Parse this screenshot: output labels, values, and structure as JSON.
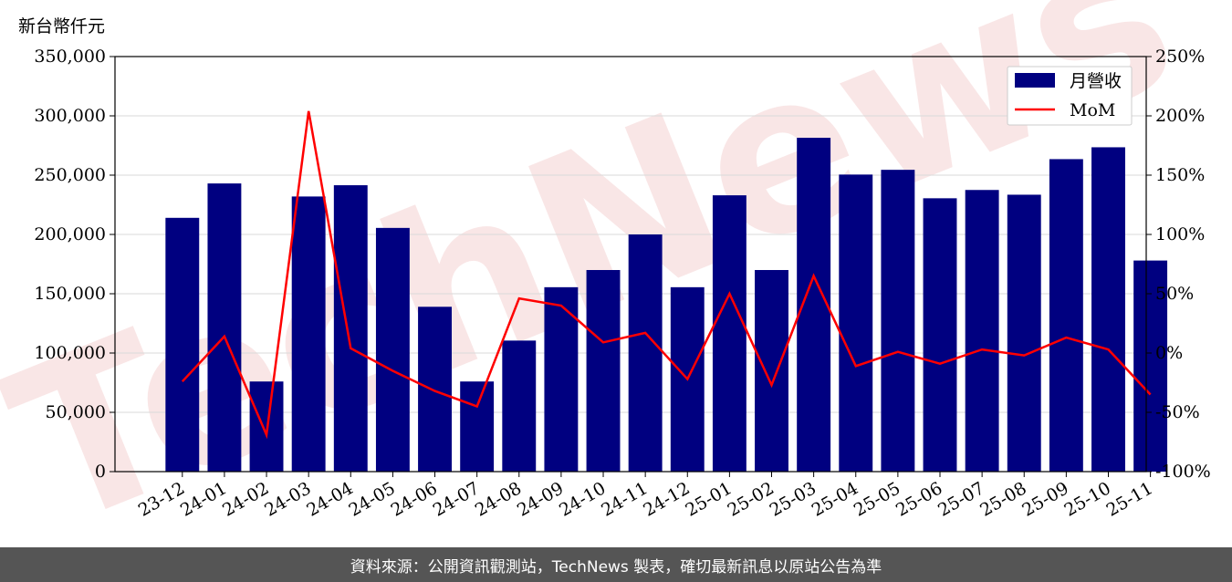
{
  "unit_label": "新台幣仟元",
  "footer": "資料來源：公開資訊觀測站，TechNews 製表，確切最新訊息以原站公告為準",
  "colors": {
    "bar": "#000080",
    "line": "#ff0000",
    "footer_bg": "#555555",
    "watermark": "#e8a0a0"
  },
  "watermark": "TechNews",
  "chart_data": {
    "type": "bar",
    "categories": [
      "23-12",
      "24-01",
      "24-02",
      "24-03",
      "24-04",
      "24-05",
      "24-06",
      "24-07",
      "24-08",
      "24-09",
      "24-10",
      "24-11",
      "24-12",
      "25-01",
      "25-02",
      "25-03",
      "25-04",
      "25-05",
      "25-06",
      "25-07",
      "25-08",
      "25-09",
      "25-10",
      "25-11"
    ],
    "series": [
      {
        "name": "月營收",
        "type": "bar",
        "axis": "left",
        "values": [
          214000,
          243000,
          76000,
          232000,
          241500,
          205500,
          139000,
          76000,
          110500,
          155500,
          170000,
          200000,
          155500,
          233000,
          170000,
          281500,
          250500,
          254500,
          230500,
          237500,
          233500,
          263500,
          273500,
          178000
        ]
      },
      {
        "name": "MoM",
        "type": "line",
        "axis": "right",
        "values": [
          -24,
          14,
          -69,
          204,
          4,
          -15,
          -32,
          -45,
          46,
          40,
          9,
          17,
          -22,
          50,
          -27,
          65,
          -11,
          1,
          -9,
          3,
          -2,
          13,
          3,
          -35
        ]
      }
    ],
    "y_left": {
      "range": [
        0,
        350000
      ],
      "ticks": [
        "0",
        "50,000",
        "100,000",
        "150,000",
        "200,000",
        "250,000",
        "300,000",
        "350,000"
      ]
    },
    "y_right": {
      "range": [
        -100,
        250
      ],
      "ticks": [
        "-100%",
        "-50%",
        "0%",
        "50%",
        "100%",
        "150%",
        "200%",
        "250%"
      ]
    },
    "grid": "horizontal",
    "legend": "top-right"
  }
}
